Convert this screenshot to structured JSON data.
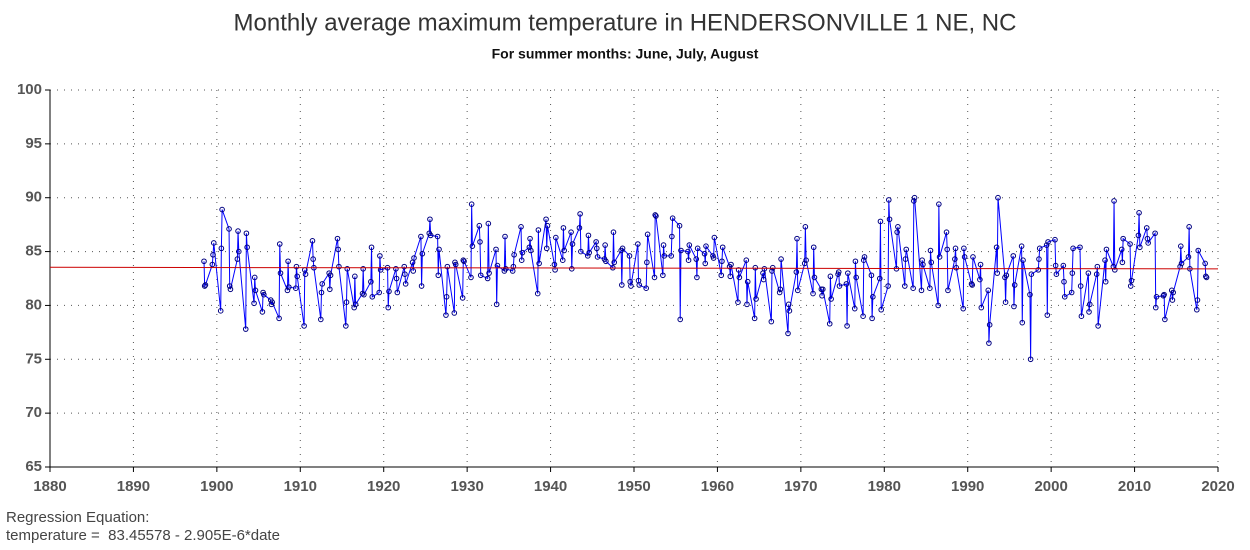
{
  "chart_data": {
    "type": "line",
    "title": "Monthly average maximum temperature in HENDERSONVILLE 1 NE, NC",
    "subtitle": "For summer months: June, July, August",
    "annotations": [
      "Regression Equation:",
      "temperature =  83.45578 - 2.905E-6*date"
    ],
    "xlim": [
      1880,
      2020
    ],
    "xticks": [
      1880,
      1890,
      1900,
      1910,
      1920,
      1930,
      1940,
      1950,
      1960,
      1970,
      1980,
      1990,
      2000,
      2010,
      2020
    ],
    "ylim": [
      65,
      100
    ],
    "yticks": [
      65,
      70,
      75,
      80,
      85,
      90,
      95,
      100
    ],
    "grid": true,
    "series": [
      {
        "color": "#0000ff",
        "x": [
          1898.46,
          1898.54,
          1898.63,
          1899.46,
          1899.54,
          1899.63,
          1900.46,
          1900.54,
          1900.63,
          1901.46,
          1901.54,
          1901.63,
          1902.46,
          1902.54,
          1902.63,
          1903.46,
          1903.54,
          1903.63,
          1904.46,
          1904.54,
          1904.63,
          1905.46,
          1905.54,
          1905.63,
          1906.46,
          1906.54,
          1906.63,
          1907.46,
          1907.54,
          1907.63,
          1908.46,
          1908.54,
          1908.63,
          1909.46,
          1909.54,
          1909.63,
          1910.46,
          1910.54,
          1910.63,
          1911.46,
          1911.54,
          1911.63,
          1912.46,
          1912.54,
          1912.63,
          1913.46,
          1913.54,
          1913.63,
          1914.46,
          1914.54,
          1914.63,
          1915.46,
          1915.54,
          1915.63,
          1916.46,
          1916.54,
          1916.63,
          1917.46,
          1917.54,
          1917.63,
          1918.46,
          1918.54,
          1918.63,
          1919.46,
          1919.54,
          1919.63,
          1920.46,
          1920.54,
          1920.63,
          1921.46,
          1921.54,
          1921.63,
          1922.46,
          1922.54,
          1922.63,
          1923.46,
          1923.54,
          1923.63,
          1924.46,
          1924.54,
          1924.63,
          1925.46,
          1925.54,
          1925.63,
          1926.46,
          1926.54,
          1926.63,
          1927.46,
          1927.54,
          1927.63,
          1928.46,
          1928.54,
          1928.63,
          1929.46,
          1929.54,
          1929.63,
          1930.46,
          1930.54,
          1930.63,
          1931.46,
          1931.54,
          1931.63,
          1932.46,
          1932.54,
          1932.63,
          1933.46,
          1933.54,
          1933.63,
          1934.46,
          1934.54,
          1934.63,
          1935.46,
          1935.54,
          1935.63,
          1936.46,
          1936.54,
          1936.63,
          1937.46,
          1937.54,
          1937.63,
          1938.46,
          1938.54,
          1938.63,
          1939.46,
          1939.54,
          1939.63,
          1940.46,
          1940.54,
          1940.63,
          1941.46,
          1941.54,
          1941.63,
          1942.46,
          1942.54,
          1942.63,
          1943.46,
          1943.54,
          1943.63,
          1944.46,
          1944.54,
          1944.63,
          1945.46,
          1945.54,
          1945.63,
          1946.46,
          1946.54,
          1946.63,
          1947.46,
          1947.54,
          1947.63,
          1948.46,
          1948.54,
          1948.63,
          1949.46,
          1949.54,
          1949.63,
          1950.46,
          1950.54,
          1950.63,
          1951.46,
          1951.54,
          1951.63,
          1952.46,
          1952.54,
          1952.63,
          1953.46,
          1953.54,
          1953.63,
          1954.46,
          1954.54,
          1954.63,
          1955.46,
          1955.54,
          1955.63,
          1956.46,
          1956.54,
          1956.63,
          1957.46,
          1957.54,
          1957.63,
          1958.46,
          1958.54,
          1958.63,
          1959.46,
          1959.54,
          1959.63,
          1960.46,
          1960.54,
          1960.63,
          1961.46,
          1961.54,
          1961.63,
          1962.46,
          1962.54,
          1962.63,
          1963.46,
          1963.54,
          1963.63,
          1964.46,
          1964.54,
          1964.63,
          1965.46,
          1965.54,
          1965.63,
          1966.46,
          1966.54,
          1966.63,
          1967.46,
          1967.54,
          1967.63,
          1968.46,
          1968.54,
          1968.63,
          1969.46,
          1969.54,
          1969.63,
          1970.46,
          1970.54,
          1970.63,
          1971.46,
          1971.54,
          1971.63,
          1972.46,
          1972.54,
          1972.63,
          1973.46,
          1973.54,
          1973.63,
          1974.46,
          1974.54,
          1974.63,
          1975.46,
          1975.54,
          1975.63,
          1976.46,
          1976.54,
          1976.63,
          1977.46,
          1977.54,
          1977.63,
          1978.46,
          1978.54,
          1978.63,
          1979.46,
          1979.54,
          1979.63,
          1980.46,
          1980.54,
          1980.63,
          1981.46,
          1981.54,
          1981.63,
          1982.46,
          1982.54,
          1982.63,
          1983.46,
          1983.54,
          1983.63,
          1984.46,
          1984.54,
          1984.63,
          1985.46,
          1985.54,
          1985.63,
          1986.46,
          1986.54,
          1986.63,
          1987.46,
          1987.54,
          1987.63,
          1988.46,
          1988.54,
          1988.63,
          1989.46,
          1989.54,
          1989.63,
          1990.46,
          1990.54,
          1990.63,
          1991.46,
          1991.54,
          1991.63,
          1992.46,
          1992.54,
          1992.63,
          1993.46,
          1993.54,
          1993.63,
          1994.46,
          1994.54,
          1994.63,
          1995.46,
          1995.54,
          1995.63,
          1996.46,
          1996.54,
          1996.63,
          1997.46,
          1997.54,
          1997.63,
          1998.46,
          1998.54,
          1998.63,
          1999.46,
          1999.54,
          1999.63,
          2000.46,
          2000.54,
          2000.63,
          2001.46,
          2001.54,
          2001.63,
          2002.46,
          2002.54,
          2002.63,
          2003.46,
          2003.54,
          2003.63,
          2004.46,
          2004.54,
          2004.63,
          2005.46,
          2005.54,
          2005.63,
          2006.46,
          2006.54,
          2006.63,
          2007.46,
          2007.54,
          2007.63,
          2008.46,
          2008.54,
          2008.63,
          2009.46,
          2009.54,
          2009.63,
          2010.46,
          2010.54,
          2010.63,
          2011.46,
          2011.54,
          2011.63,
          2012.46,
          2012.54,
          2012.63,
          2013.46,
          2013.54,
          2013.63,
          2014.46,
          2014.54,
          2014.63,
          2015.46,
          2015.54,
          2015.63,
          2016.46,
          2016.54,
          2016.63,
          2017.46,
          2017.54,
          2017.63,
          2018.46,
          2018.54,
          2018.63
        ],
        "values": [
          84.1,
          81.8,
          81.9,
          83.8,
          84.7,
          85.8,
          79.5,
          85.3,
          88.9,
          87.1,
          81.8,
          81.5,
          84.3,
          86.9,
          85.0,
          77.8,
          86.7,
          85.4,
          80.2,
          82.6,
          81.4,
          79.4,
          81.2,
          81.0,
          80.5,
          80.1,
          80.3,
          78.8,
          85.7,
          83.0,
          81.4,
          84.1,
          81.7,
          81.6,
          83.6,
          82.7,
          78.1,
          83.3,
          82.9,
          86.0,
          84.3,
          83.5,
          78.7,
          81.2,
          82.0,
          83.0,
          81.5,
          82.8,
          86.2,
          85.2,
          83.6,
          78.1,
          80.3,
          83.4,
          79.8,
          82.7,
          80.1,
          81.1,
          83.4,
          81.0,
          82.2,
          85.4,
          80.8,
          81.2,
          84.6,
          83.3,
          83.5,
          79.8,
          81.3,
          83.4,
          82.5,
          81.2,
          83.6,
          82.9,
          82.0,
          84.0,
          83.2,
          84.4,
          86.4,
          81.8,
          84.8,
          86.7,
          88.0,
          86.5,
          86.4,
          82.8,
          85.2,
          79.1,
          80.8,
          83.6,
          79.3,
          84.0,
          83.8,
          80.7,
          84.2,
          84.1,
          82.6,
          89.4,
          85.5,
          87.4,
          85.9,
          82.8,
          82.5,
          87.6,
          83.0,
          85.2,
          80.1,
          83.7,
          83.2,
          86.4,
          83.4,
          83.2,
          83.6,
          84.7,
          87.3,
          84.2,
          84.9,
          85.4,
          86.2,
          85.1,
          81.1,
          87.0,
          83.9,
          88.0,
          85.3,
          87.4,
          83.8,
          83.3,
          86.3,
          84.2,
          87.2,
          85.1,
          86.8,
          83.4,
          85.7,
          87.2,
          88.5,
          85.0,
          84.6,
          86.5,
          84.9,
          85.9,
          85.3,
          84.5,
          84.3,
          85.6,
          84.1,
          83.5,
          86.8,
          84.0,
          85.1,
          81.9,
          85.3,
          84.6,
          82.2,
          81.8,
          85.7,
          82.3,
          81.9,
          81.6,
          84.0,
          86.6,
          82.6,
          88.4,
          88.3,
          82.8,
          85.6,
          84.6,
          84.6,
          86.4,
          88.1,
          87.4,
          78.7,
          85.1,
          85.0,
          84.2,
          85.6,
          84.3,
          82.6,
          85.3,
          84.8,
          83.9,
          85.5,
          84.6,
          84.4,
          86.3,
          82.8,
          84.1,
          85.4,
          83.6,
          82.7,
          83.8,
          80.3,
          83.3,
          82.6,
          84.2,
          80.1,
          82.2,
          78.8,
          83.5,
          80.6,
          83.0,
          82.4,
          83.4,
          78.5,
          83.2,
          83.5,
          81.2,
          81.5,
          84.3,
          77.4,
          80.1,
          79.5,
          83.1,
          86.2,
          81.4,
          83.9,
          87.3,
          84.2,
          81.1,
          85.4,
          82.6,
          81.5,
          80.9,
          81.5,
          78.3,
          82.7,
          80.6,
          82.9,
          83.1,
          81.8,
          82.0,
          78.1,
          83.0,
          79.7,
          84.1,
          82.6,
          79.0,
          84.2,
          84.5,
          82.8,
          78.8,
          80.8,
          82.5,
          87.8,
          79.6,
          81.8,
          89.8,
          88.0,
          83.4,
          86.8,
          87.3,
          81.8,
          84.3,
          85.2,
          81.6,
          89.7,
          90.0,
          81.4,
          84.2,
          83.8,
          81.6,
          85.1,
          84.0,
          80.0,
          89.4,
          84.5,
          86.8,
          85.2,
          81.4,
          84.3,
          85.3,
          83.5,
          79.7,
          85.3,
          84.5,
          82.0,
          81.9,
          84.5,
          82.4,
          83.8,
          79.8,
          81.4,
          76.5,
          78.2,
          85.4,
          83.0,
          90.0,
          82.6,
          80.3,
          82.8,
          84.6,
          79.9,
          81.9,
          85.5,
          78.4,
          84.2,
          81.0,
          75.0,
          82.9,
          83.3,
          84.3,
          85.3,
          85.6,
          79.1,
          85.9,
          86.1,
          83.7,
          82.9,
          83.7,
          82.2,
          80.8,
          81.2,
          83.0,
          85.3,
          85.4,
          81.8,
          79.0,
          83.0,
          79.4,
          80.1,
          82.9,
          83.6,
          78.1,
          84.2,
          82.2,
          85.2,
          83.6,
          89.7,
          83.3,
          85.2,
          84.0,
          86.2,
          85.7,
          81.8,
          82.3,
          86.5,
          88.6,
          85.4,
          87.2,
          86.2,
          85.8,
          86.7,
          79.8,
          80.8,
          80.9,
          81.0,
          78.7,
          81.4,
          80.5,
          81.2,
          83.6,
          85.5,
          83.9,
          84.5,
          87.3,
          83.4,
          79.6,
          80.5,
          85.1,
          83.9,
          82.7,
          82.6
        ]
      },
      {
        "color": "#cc0000",
        "x": [
          1880,
          2020
        ],
        "values": [
          83.54,
          83.39
        ]
      }
    ]
  }
}
